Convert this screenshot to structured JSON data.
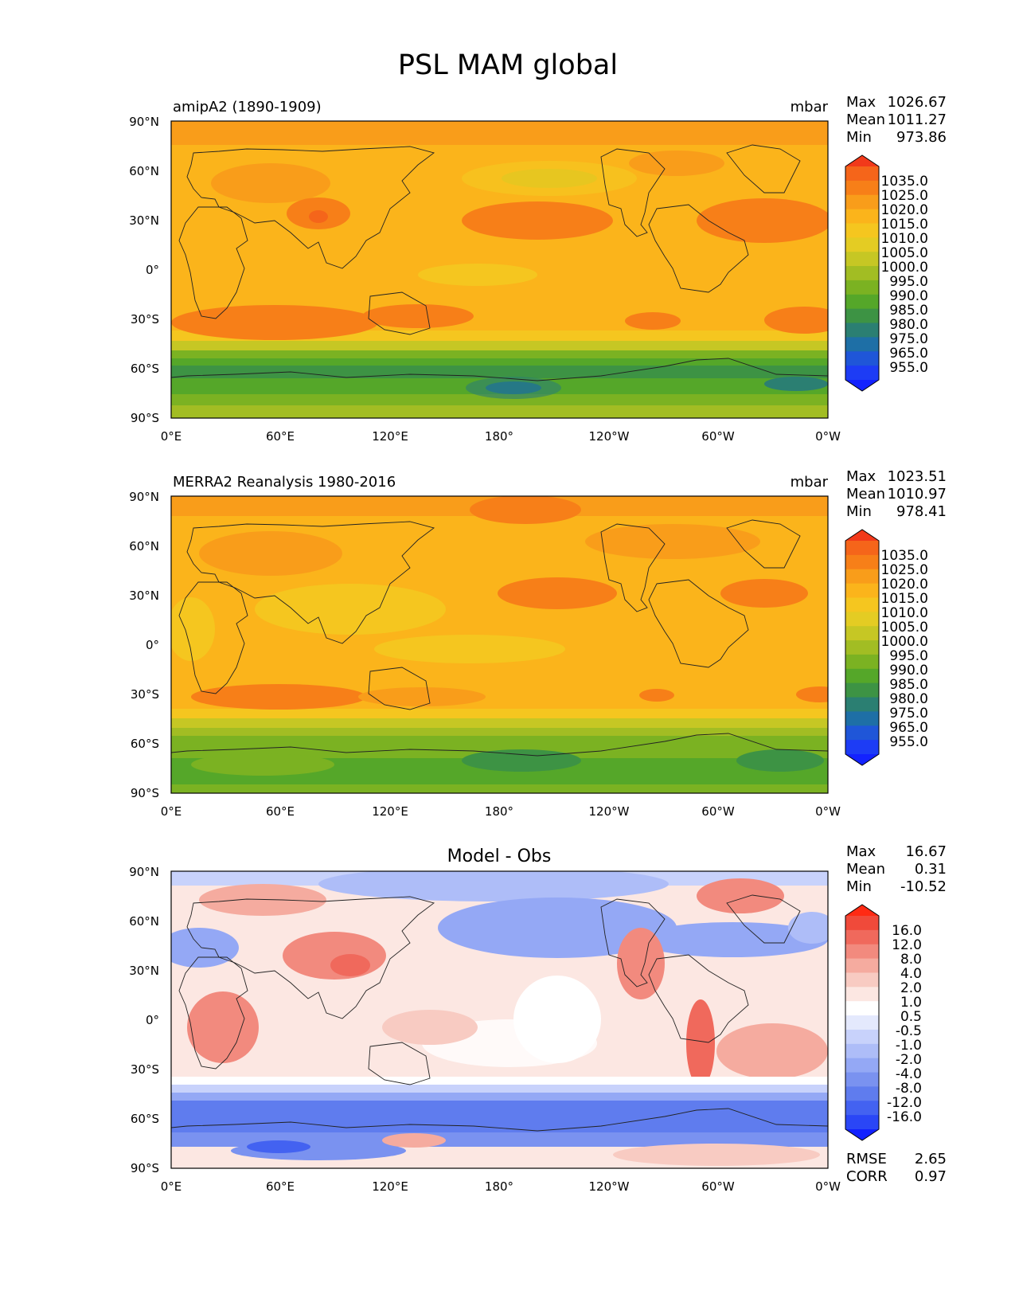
{
  "figure": {
    "title": "PSL MAM global"
  },
  "lat_tick_labels": [
    "90°N",
    "60°N",
    "30°N",
    "0°",
    "30°S",
    "60°S",
    "90°S"
  ],
  "lon_tick_labels": [
    "0°E",
    "60°E",
    "120°E",
    "180°",
    "120°W",
    "60°W",
    "0°W"
  ],
  "panels": [
    {
      "title_left": "amipA2 (1890-1909)",
      "title_center": "",
      "units": "mbar",
      "stats": {
        "max_label": "Max",
        "max": "1026.67",
        "mean_label": "Mean",
        "mean": "1011.27",
        "min_label": "Min",
        "min": "973.86"
      },
      "colorbar_labels": [
        "1035.0",
        "1025.0",
        "1020.0",
        "1015.0",
        "1010.0",
        "1005.0",
        "1000.0",
        "995.0",
        "990.0",
        "985.0",
        "980.0",
        "975.0",
        "965.0",
        "955.0"
      ],
      "footer": null
    },
    {
      "title_left": "MERRA2 Reanalysis 1980-2016",
      "title_center": "",
      "units": "mbar",
      "stats": {
        "max_label": "Max",
        "max": "1023.51",
        "mean_label": "Mean",
        "mean": "1010.97",
        "min_label": "Min",
        "min": "978.41"
      },
      "colorbar_labels": [
        "1035.0",
        "1025.0",
        "1020.0",
        "1015.0",
        "1010.0",
        "1005.0",
        "1000.0",
        "995.0",
        "990.0",
        "985.0",
        "980.0",
        "975.0",
        "965.0",
        "955.0"
      ],
      "footer": null
    },
    {
      "title_left": "",
      "title_center": "Model - Obs",
      "units": "",
      "stats": {
        "max_label": "Max",
        "max": "16.67",
        "mean_label": "Mean",
        "mean": "0.31",
        "min_label": "Min",
        "min": "-10.52"
      },
      "colorbar_labels": [
        "16.0",
        "12.0",
        "8.0",
        "4.0",
        "2.0",
        "1.0",
        "0.5",
        "-0.5",
        "-1.0",
        "-2.0",
        "-4.0",
        "-8.0",
        "-12.0",
        "-16.0"
      ],
      "footer": {
        "rmse_label": "RMSE",
        "rmse": "2.65",
        "corr_label": "CORR",
        "corr": "0.97"
      }
    }
  ],
  "colors": {
    "psl_scale": [
      "#f2391a",
      "#f5651a",
      "#f77f18",
      "#f99d1a",
      "#fbb41b",
      "#f5c61f",
      "#e4cc23",
      "#c6c724",
      "#a2bd23",
      "#7bb222",
      "#55a729",
      "#3d9344",
      "#2b7f72",
      "#1e6fa6",
      "#1f56d8",
      "#1d3cf5",
      "#1322ff"
    ],
    "diff_scale": [
      "#ff2a13",
      "#f04a3a",
      "#f0695c",
      "#f28a7e",
      "#f5ab9f",
      "#f8cbc2",
      "#fce7e2",
      "#ffffff",
      "#e4e9fd",
      "#c8d2fb",
      "#aebdf8",
      "#94a8f5",
      "#7a92f0",
      "#5f7cee",
      "#4362f1",
      "#2a46f6",
      "#1121ff"
    ]
  }
}
